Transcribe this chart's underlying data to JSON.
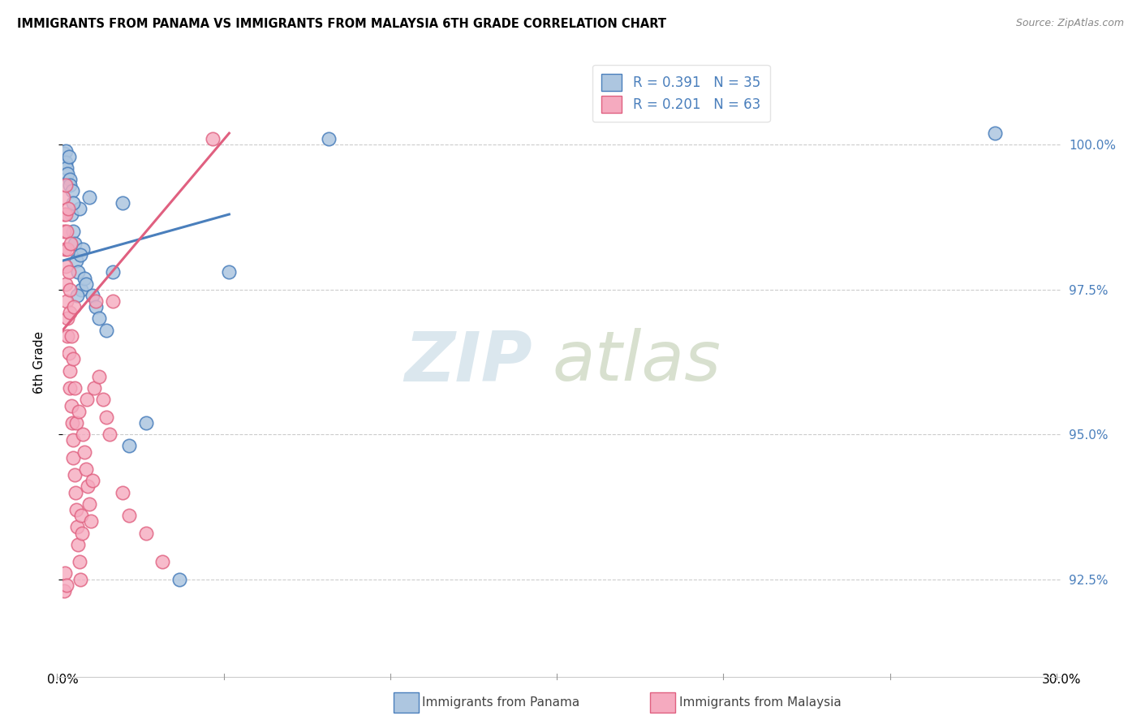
{
  "title": "IMMIGRANTS FROM PANAMA VS IMMIGRANTS FROM MALAYSIA 6TH GRADE CORRELATION CHART",
  "source": "Source: ZipAtlas.com",
  "ylabel": "6th Grade",
  "yticks": [
    92.5,
    95.0,
    97.5,
    100.0
  ],
  "ytick_labels": [
    "92.5%",
    "95.0%",
    "97.5%",
    "100.0%"
  ],
  "xlim": [
    0.0,
    30.0
  ],
  "ylim": [
    91.0,
    101.5
  ],
  "legend_r1": "R = 0.391",
  "legend_n1": "N = 35",
  "legend_r2": "R = 0.201",
  "legend_n2": "N = 63",
  "color_panama": "#adc6e0",
  "color_malaysia": "#f5aabf",
  "color_line_panama": "#4a7fbc",
  "color_line_malaysia": "#e06080",
  "watermark_color": "#ccdde8",
  "watermark_color2": "#c8d8b8",
  "bottom_label_panama": "Immigrants from Panama",
  "bottom_label_malaysia": "Immigrants from Malaysia",
  "panama_x": [
    0.05,
    0.08,
    0.1,
    0.12,
    0.15,
    0.18,
    0.2,
    0.22,
    0.25,
    0.3,
    0.35,
    0.4,
    0.45,
    0.5,
    0.55,
    0.6,
    0.65,
    0.7,
    0.8,
    0.9,
    1.0,
    1.1,
    1.3,
    1.5,
    1.8,
    2.0,
    0.28,
    0.32,
    0.42,
    0.52,
    2.5,
    3.5,
    8.0,
    5.0,
    28.0
  ],
  "panama_y": [
    99.85,
    99.9,
    99.7,
    99.6,
    99.5,
    99.8,
    99.4,
    99.3,
    98.8,
    98.5,
    98.3,
    98.0,
    97.8,
    98.9,
    97.5,
    98.2,
    97.7,
    97.6,
    99.1,
    97.4,
    97.2,
    97.0,
    96.8,
    97.8,
    99.0,
    94.8,
    99.2,
    99.0,
    97.4,
    98.1,
    95.2,
    92.5,
    100.1,
    97.8,
    100.2
  ],
  "malaysia_x": [
    0.02,
    0.03,
    0.05,
    0.06,
    0.08,
    0.08,
    0.1,
    0.1,
    0.12,
    0.12,
    0.15,
    0.15,
    0.15,
    0.18,
    0.18,
    0.2,
    0.2,
    0.22,
    0.22,
    0.25,
    0.25,
    0.28,
    0.3,
    0.3,
    0.32,
    0.35,
    0.35,
    0.38,
    0.4,
    0.4,
    0.42,
    0.45,
    0.48,
    0.5,
    0.52,
    0.55,
    0.58,
    0.6,
    0.65,
    0.7,
    0.72,
    0.75,
    0.8,
    0.85,
    0.9,
    0.95,
    1.0,
    1.1,
    1.2,
    1.3,
    1.4,
    1.5,
    1.8,
    2.0,
    2.5,
    3.0,
    4.5,
    0.04,
    0.07,
    0.11,
    0.16,
    0.23,
    0.33
  ],
  "malaysia_y": [
    99.1,
    98.8,
    98.5,
    98.2,
    97.9,
    99.3,
    97.6,
    98.8,
    97.3,
    98.5,
    97.0,
    98.2,
    96.7,
    96.4,
    97.8,
    96.1,
    97.5,
    95.8,
    97.1,
    95.5,
    96.7,
    95.2,
    94.9,
    96.3,
    94.6,
    94.3,
    95.8,
    94.0,
    93.7,
    95.2,
    93.4,
    93.1,
    95.4,
    92.8,
    92.5,
    93.6,
    93.3,
    95.0,
    94.7,
    94.4,
    95.6,
    94.1,
    93.8,
    93.5,
    94.2,
    95.8,
    97.3,
    96.0,
    95.6,
    95.3,
    95.0,
    97.3,
    94.0,
    93.6,
    93.3,
    92.8,
    100.1,
    92.3,
    92.6,
    92.4,
    98.9,
    98.3,
    97.2
  ],
  "trendline_panama_x0": 0.0,
  "trendline_panama_y0": 98.0,
  "trendline_panama_x1": 5.0,
  "trendline_panama_y1": 98.8,
  "trendline_malaysia_x0": 0.0,
  "trendline_malaysia_y0": 96.8,
  "trendline_malaysia_x1": 5.0,
  "trendline_malaysia_y1": 100.2
}
